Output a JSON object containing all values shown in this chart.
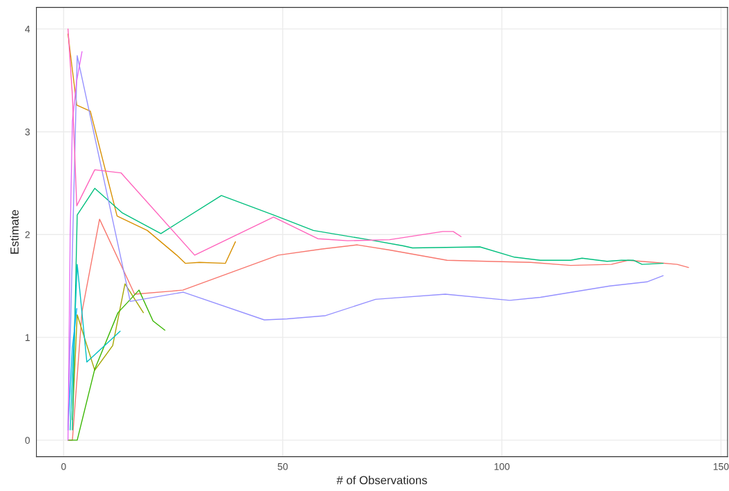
{
  "chart_data": {
    "type": "line",
    "xlabel": "# of Observations",
    "ylabel": "Estimate",
    "xlim": [
      -6.2,
      151.5
    ],
    "ylim": [
      -0.16,
      4.21
    ],
    "xticks": [
      0,
      50,
      100,
      150
    ],
    "yticks": [
      0,
      1,
      2,
      3,
      4
    ],
    "grid": true,
    "legend": false,
    "series": [
      {
        "color": "#F8766D",
        "x": [
          1,
          2,
          4.2,
          8.2,
          16.2,
          24.6,
          27.2,
          49,
          59,
          67,
          74.4,
          87.5,
          96.6,
          106.6,
          115.7,
          125,
          128.8,
          134.7,
          140,
          142.6
        ],
        "values": [
          0,
          0,
          1.25,
          2.15,
          1.42,
          1.45,
          1.46,
          1.8,
          1.86,
          1.9,
          1.85,
          1.75,
          1.74,
          1.73,
          1.7,
          1.71,
          1.75,
          1.73,
          1.71,
          1.68
        ]
      },
      {
        "color": "#D89000",
        "x": [
          1,
          2,
          3,
          6.1,
          12.2,
          19.1,
          25.8,
          27.8,
          31,
          36.9,
          39.2
        ],
        "values": [
          3.95,
          3.6,
          3.26,
          3.2,
          2.18,
          2.04,
          1.8,
          1.72,
          1.73,
          1.72,
          1.93
        ]
      },
      {
        "color": "#A3A500",
        "x": [
          2,
          3.1,
          7.1,
          11.2,
          14.0,
          18.2
        ],
        "values": [
          0.2,
          1.22,
          0.68,
          0.92,
          1.52,
          1.24
        ]
      },
      {
        "color": "#39B600",
        "x": [
          1,
          3.1,
          7.1,
          12.4,
          17.2,
          20.4,
          23.1
        ],
        "values": [
          0,
          0,
          0.69,
          1.24,
          1.46,
          1.16,
          1.07
        ]
      },
      {
        "color": "#00BF7D",
        "x": [
          2,
          3.1,
          7.1,
          13.4,
          22.2,
          36,
          47.9,
          57,
          69.6,
          77.5,
          79.6,
          95,
          102.9,
          108.8,
          115.7,
          118.3,
          124,
          127.3,
          130,
          132,
          136.8
        ],
        "values": [
          0.1,
          2.19,
          2.45,
          2.21,
          2.01,
          2.38,
          2.19,
          2.04,
          1.95,
          1.89,
          1.87,
          1.88,
          1.78,
          1.75,
          1.75,
          1.77,
          1.74,
          1.75,
          1.75,
          1.71,
          1.72
        ]
      },
      {
        "color": "#00BFC4",
        "x": [
          1.5,
          3.1,
          5.3,
          12.9
        ],
        "values": [
          0.1,
          1.71,
          0.76,
          1.06
        ]
      },
      {
        "color": "#00B0F6",
        "x": [
          1,
          2,
          3
        ],
        "values": [
          0.1,
          0.9,
          1.28
        ]
      },
      {
        "color": "#9590FF",
        "x": [
          1,
          3.1,
          15.2,
          27.3,
          45.8,
          51,
          59.6,
          71.2,
          74.4,
          87.1,
          101.8,
          108.8,
          124.6,
          133.1,
          136.8
        ],
        "values": [
          0.1,
          3.74,
          1.35,
          1.44,
          1.17,
          1.18,
          1.21,
          1.37,
          1.38,
          1.42,
          1.36,
          1.39,
          1.5,
          1.54,
          1.6
        ]
      },
      {
        "color": "#E76BF3",
        "x": [
          1,
          1.5,
          2,
          3,
          4.2
        ],
        "values": [
          0,
          2.0,
          3.1,
          3.5,
          3.78
        ]
      },
      {
        "color": "#FF62BC",
        "x": [
          1,
          2,
          3,
          7.1,
          13.1,
          29.9,
          47.9,
          58,
          64.8,
          74.4,
          86.5,
          88.9,
          90.7
        ],
        "values": [
          4.0,
          3.35,
          2.28,
          2.63,
          2.6,
          1.8,
          2.17,
          1.96,
          1.94,
          1.95,
          2.03,
          2.03,
          1.98
        ]
      }
    ]
  }
}
